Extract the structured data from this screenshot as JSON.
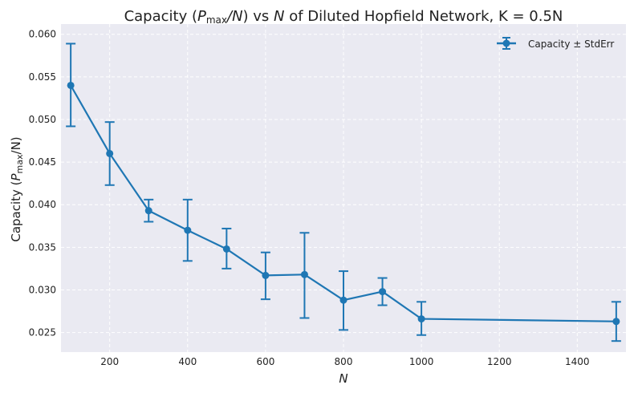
{
  "chart_data": {
    "type": "line",
    "title_main": "Capacity (",
    "title_p": "P",
    "title_sub": "max",
    "title_slash_n": "/N",
    "title_rest": ") vs ",
    "title_n": "N",
    "title_tail": " of Diluted Hopfield Network, K = 0.5N",
    "xlabel": "N",
    "ylabel_main": "Capacity (",
    "ylabel_p": "P",
    "ylabel_sub": "max",
    "ylabel_end": "/N)",
    "xlim": [
      75,
      1525
    ],
    "ylim": [
      0.0227,
      0.0612
    ],
    "xticks": [
      200,
      400,
      600,
      800,
      1000,
      1200,
      1400
    ],
    "yticks": [
      0.025,
      0.03,
      0.035,
      0.04,
      0.045,
      0.05,
      0.055,
      0.06
    ],
    "ytick_labels": [
      "0.025",
      "0.030",
      "0.035",
      "0.040",
      "0.045",
      "0.050",
      "0.055",
      "0.060"
    ],
    "grid": true,
    "legend_position": "top-right",
    "series": [
      {
        "name": "Capacity ± StdErr",
        "color": "#1f77b4",
        "x": [
          100,
          200,
          300,
          400,
          500,
          600,
          700,
          800,
          900,
          1000,
          1500
        ],
        "y": [
          0.054,
          0.046,
          0.0393,
          0.037,
          0.0348,
          0.0317,
          0.0318,
          0.0288,
          0.0298,
          0.0266,
          0.0263
        ],
        "err_low": [
          0.0492,
          0.0423,
          0.038,
          0.0334,
          0.0325,
          0.0289,
          0.0267,
          0.0253,
          0.0282,
          0.0247,
          0.024
        ],
        "err_high": [
          0.0589,
          0.0497,
          0.0406,
          0.0406,
          0.0372,
          0.0344,
          0.0367,
          0.0322,
          0.0314,
          0.0286,
          0.0286
        ]
      }
    ]
  }
}
